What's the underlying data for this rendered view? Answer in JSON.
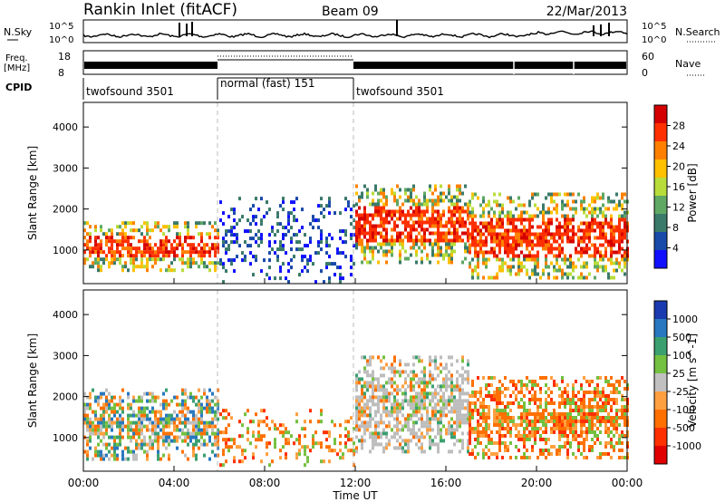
{
  "header": {
    "station": "Rankin Inlet (fitACF)",
    "beam": "Beam 09",
    "date": "22/Mar/2013"
  },
  "top_panel": {
    "left_label": "N.Sky",
    "right_label": "N.Search",
    "left_ticks": [
      "10^5",
      "10^0"
    ],
    "right_ticks": [
      "10^5",
      "10^0"
    ]
  },
  "freq_panel": {
    "left_label_1": "Freq.",
    "left_label_2": "[MHz]",
    "right_label": "Nave",
    "left_ticks": [
      "18",
      "8"
    ],
    "right_ticks": [
      "60",
      "0"
    ]
  },
  "cpid": {
    "label": "CPID",
    "segments": [
      {
        "name": "twofsound 3501",
        "start_hour": 0,
        "end_hour": 6
      },
      {
        "name": "normal (fast) 151",
        "start_hour": 6,
        "end_hour": 12
      },
      {
        "name": "twofsound 3501",
        "start_hour": 12,
        "end_hour": 24
      }
    ]
  },
  "axes": {
    "xlabel": "Time UT",
    "ylabel": "Slant Range [km]",
    "x_ticks": [
      "00:00",
      "04:00",
      "08:00",
      "12:00",
      "16:00",
      "20:00",
      "00:00"
    ],
    "y_ticks": [
      "1000",
      "2000",
      "3000",
      "4000"
    ]
  },
  "colors": {
    "axis": "#000000",
    "dashed_line": "#bbbbbb",
    "ground_scatter": "#bdbdbd"
  },
  "chart_data": [
    {
      "type": "heatmap",
      "panel": "power",
      "xlabel": "Time UT",
      "ylabel": "Slant Range [km]",
      "xlim": [
        0,
        24
      ],
      "ylim": [
        180,
        4600
      ],
      "colorbar": {
        "label": "Power [dB]",
        "ticks": [
          "28",
          "24",
          "20",
          "16",
          "12",
          "8",
          "4"
        ],
        "colors": [
          "#d40000",
          "#ff3000",
          "#ff8000",
          "#ffc000",
          "#b8dc3a",
          "#5ea864",
          "#3a7a6a",
          "#1a4aa8",
          "#1010ff"
        ]
      },
      "regions": [
        {
          "start_hour": 0.0,
          "end_hour": 6.0,
          "range_km": [
            500,
            1700
          ],
          "level": "strong"
        },
        {
          "start_hour": 6.0,
          "end_hour": 12.0,
          "range_km": [
            200,
            2300
          ],
          "level": "weak"
        },
        {
          "start_hour": 12.0,
          "end_hour": 17.0,
          "range_km": [
            700,
            2600
          ],
          "level": "medium"
        },
        {
          "start_hour": 17.0,
          "end_hour": 24.0,
          "range_km": [
            300,
            2400
          ],
          "level": "strong"
        }
      ]
    },
    {
      "type": "heatmap",
      "panel": "velocity",
      "xlabel": "Time UT",
      "ylabel": "Slant Range [km]",
      "xlim": [
        0,
        24
      ],
      "ylim": [
        180,
        4600
      ],
      "colorbar": {
        "label": "Velocity [m s^-1]",
        "ticks": [
          "1000",
          "500",
          "100",
          "25",
          "-25",
          "-100",
          "-500",
          "-1000"
        ],
        "colors": [
          "#1a3ab0",
          "#2878c0",
          "#3aa070",
          "#74c040",
          "#c0c0c0",
          "#ffa040",
          "#ff7000",
          "#ff3000",
          "#e00000"
        ]
      },
      "regions": [
        {
          "start_hour": 0.0,
          "end_hour": 6.0,
          "range_km": [
            500,
            2200
          ],
          "dominant": "mixed green/orange"
        },
        {
          "start_hour": 6.0,
          "end_hour": 12.0,
          "range_km": [
            300,
            1700
          ],
          "dominant": "orange"
        },
        {
          "start_hour": 12.0,
          "end_hour": 17.0,
          "range_km": [
            700,
            3000
          ],
          "dominant": "ground scatter"
        },
        {
          "start_hour": 17.0,
          "end_hour": 24.0,
          "range_km": [
            500,
            2500
          ],
          "dominant": "orange"
        }
      ]
    }
  ]
}
